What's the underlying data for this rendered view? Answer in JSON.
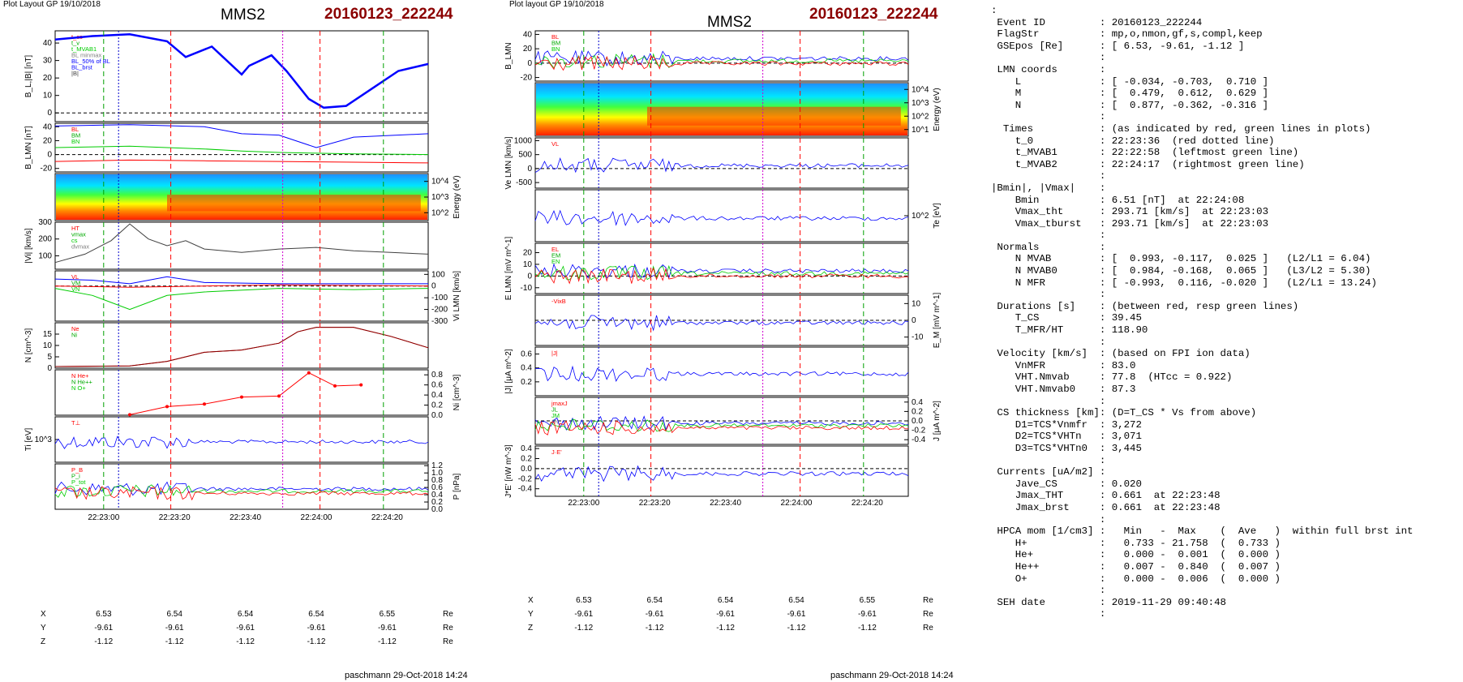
{
  "header": {
    "left_caption": "Plot Layout GP 19/10/2018",
    "middle_caption": "Plot layout GP 19/10/2018",
    "spacecraft": "MMS2",
    "event_id": "20160123_222244"
  },
  "footer": {
    "left": "paschmann 29-Oct-2018 14:24",
    "middle": "paschmann 29-Oct-2018 14:24"
  },
  "time_axis": {
    "left_ticks": [
      "22:23:00",
      "22:23:20",
      "22:23:40",
      "22:24:00",
      "22:24:20"
    ],
    "middle_ticks": [
      "22:23:00",
      "22:23:20",
      "22:23:40",
      "22:24:00",
      "22:24:20"
    ]
  },
  "orbit_left": {
    "rows": [
      {
        "label": "X",
        "values": [
          "6.53",
          "6.54",
          "6.54",
          "6.54",
          "6.55"
        ],
        "unit": "Re"
      },
      {
        "label": "Y",
        "values": [
          "-9.61",
          "-9.61",
          "-9.61",
          "-9.61",
          "-9.61"
        ],
        "unit": "Re"
      },
      {
        "label": "Z",
        "values": [
          "-1.12",
          "-1.12",
          "-1.12",
          "-1.12",
          "-1.12"
        ],
        "unit": "Re"
      }
    ]
  },
  "orbit_middle": {
    "rows": [
      {
        "label": "X",
        "values": [
          "6.53",
          "6.54",
          "6.54",
          "6.54",
          "6.55"
        ],
        "unit": "Re"
      },
      {
        "label": "Y",
        "values": [
          "-9.61",
          "-9.61",
          "-9.61",
          "-9.61",
          "-9.61"
        ],
        "unit": "Re"
      },
      {
        "label": "Z",
        "values": [
          "-1.12",
          "-1.12",
          "-1.12",
          "-1.12",
          "-1.12"
        ],
        "unit": "Re"
      }
    ]
  },
  "colors": {
    "red_marker": "#ff0000",
    "green_marker": "#00a000",
    "magenta_marker": "#d000d0",
    "blue_marker": "#0000cc",
    "event_color": "#8b0000",
    "bl_series": "#0000ff",
    "bm_series": "#00cc00",
    "bn_series": "#ff0000"
  },
  "chart_data": [
    {
      "type": "line",
      "panel": "left-1",
      "ylabel": "B_L,|B| [nT]",
      "yticks": [
        "40",
        "30",
        "20",
        "10",
        "0"
      ],
      "ylim": [
        -5,
        47
      ],
      "legend": [
        "t_cs",
        "t_v",
        "t_MVAB1",
        "BL minmax",
        "BL_50% of BL",
        "BL_brst",
        "|B|"
      ],
      "series": [
        {
          "name": "BL",
          "x": [
            0,
            0.1,
            0.2,
            0.3,
            0.35,
            0.42,
            0.5,
            0.52,
            0.58,
            0.62,
            0.68,
            0.72,
            0.78,
            0.85,
            0.92,
            1.0
          ],
          "values": [
            42,
            44,
            45,
            41,
            32,
            38,
            22,
            27,
            33,
            24,
            8,
            3,
            4,
            14,
            24,
            28
          ]
        }
      ]
    },
    {
      "type": "line",
      "panel": "left-2",
      "ylabel": "B_LMN [nT]",
      "yticks": [
        "40",
        "20",
        "0",
        "-20"
      ],
      "ylim": [
        -25,
        45
      ],
      "legend": [
        "BL",
        "BM",
        "BN"
      ],
      "series": [
        {
          "name": "BL",
          "x": [
            0,
            0.2,
            0.4,
            0.5,
            0.6,
            0.7,
            0.8,
            1.0
          ],
          "values": [
            41,
            43,
            40,
            30,
            28,
            10,
            25,
            30
          ]
        },
        {
          "name": "BM",
          "x": [
            0,
            0.2,
            0.4,
            0.5,
            0.6,
            0.7,
            0.8,
            1.0
          ],
          "values": [
            10,
            12,
            8,
            5,
            3,
            2,
            1,
            0
          ]
        },
        {
          "name": "BN",
          "x": [
            0,
            0.2,
            0.4,
            0.6,
            0.8,
            1.0
          ],
          "values": [
            -10,
            -8,
            -9,
            -10,
            -11,
            -12
          ]
        }
      ]
    },
    {
      "type": "heatmap",
      "panel": "left-3",
      "ylabel": "Energy (eV)",
      "yticks": [
        "10^4",
        "10^3",
        "10^2"
      ]
    },
    {
      "type": "line",
      "panel": "left-4",
      "ylabel": "|Vi| [km/s]",
      "yticks": [
        "300",
        "200",
        "100"
      ],
      "ylim": [
        20,
        300
      ],
      "legend": [
        "HT",
        "vmax",
        "cs",
        "dvmax"
      ],
      "series": [
        {
          "name": "|Vi|",
          "x": [
            0,
            0.08,
            0.15,
            0.2,
            0.25,
            0.3,
            0.35,
            0.4,
            0.5,
            0.6,
            0.7,
            0.8,
            0.9,
            1.0
          ],
          "values": [
            60,
            110,
            190,
            290,
            200,
            160,
            190,
            140,
            120,
            140,
            150,
            130,
            120,
            110
          ]
        }
      ]
    },
    {
      "type": "line",
      "panel": "left-5",
      "ylabel": "Vi LMN [km/s]",
      "yticks": [
        "100",
        "0",
        "-100",
        "-200",
        "-300"
      ],
      "ylim": [
        -300,
        130
      ],
      "legend": [
        "VL",
        "VM",
        "VN"
      ],
      "series": [
        {
          "name": "VL",
          "x": [
            0,
            0.1,
            0.2,
            0.3,
            0.4,
            0.6,
            0.8,
            1.0
          ],
          "values": [
            60,
            50,
            20,
            80,
            30,
            20,
            20,
            20
          ]
        },
        {
          "name": "VM",
          "x": [
            0,
            0.1,
            0.2,
            0.3,
            0.4,
            0.6,
            0.8,
            1.0
          ],
          "values": [
            -20,
            -80,
            -200,
            -80,
            -50,
            -20,
            -30,
            -20
          ]
        },
        {
          "name": "VN",
          "x": [
            0,
            0.2,
            0.4,
            0.6,
            0.8,
            1.0
          ],
          "values": [
            0,
            -10,
            0,
            10,
            5,
            0
          ]
        }
      ]
    },
    {
      "type": "line",
      "panel": "left-6",
      "ylabel": "N [cm^-3]",
      "yticks": [
        "15",
        "10",
        "5",
        "0"
      ],
      "ylim": [
        0,
        20
      ],
      "legend": [
        "Ne",
        "Ni"
      ],
      "series": [
        {
          "name": "Ne",
          "x": [
            0,
            0.2,
            0.3,
            0.4,
            0.5,
            0.6,
            0.65,
            0.7,
            0.8,
            0.9,
            1.0
          ],
          "values": [
            0.7,
            1,
            3,
            7,
            8,
            11,
            16,
            18,
            18,
            14,
            9
          ]
        },
        {
          "name": "Ni",
          "x": [
            0,
            0.2,
            0.3,
            0.4,
            0.5,
            0.6,
            0.65,
            0.7,
            0.8,
            0.9,
            1.0
          ],
          "values": [
            0.7,
            1,
            3,
            7,
            8,
            11,
            16,
            18,
            18,
            14,
            9
          ]
        }
      ]
    },
    {
      "type": "line",
      "panel": "left-7",
      "ylabel": "Ni [cm^-3]",
      "yticks": [
        "0.8",
        "0.6",
        "0.4",
        "0.2",
        "0.0"
      ],
      "ylim": [
        0,
        0.9
      ],
      "legend": [
        "N He+",
        "N He++",
        "N O+"
      ],
      "series": [
        {
          "name": "N He++",
          "x": [
            0.2,
            0.3,
            0.4,
            0.5,
            0.6,
            0.68,
            0.75,
            0.82
          ],
          "values": [
            0.01,
            0.17,
            0.22,
            0.36,
            0.38,
            0.84,
            0.58,
            0.6
          ]
        }
      ]
    },
    {
      "type": "line",
      "panel": "left-8",
      "ylabel": "Ti [eV]",
      "yticks": [
        "10^3"
      ],
      "legend": [
        "T⊥"
      ]
    },
    {
      "type": "line",
      "panel": "left-9",
      "ylabel": "P [nPa]",
      "yticks": [
        "1.2",
        "1.0",
        "0.8",
        "0.6",
        "0.4",
        "0.2",
        "0.0"
      ],
      "ylim": [
        0,
        1.25
      ],
      "legend": [
        "P_B",
        "P_i",
        "P_tot"
      ]
    },
    {
      "type": "line",
      "panel": "mid-1",
      "ylabel": "B_LMN",
      "yticks": [
        "40",
        "20",
        "0",
        "-20"
      ],
      "ylim": [
        -25,
        45
      ],
      "legend": [
        "BL",
        "BM",
        "BN"
      ]
    },
    {
      "type": "heatmap",
      "panel": "mid-2",
      "ylabel": "Energy (eV)",
      "yticks": [
        "10^4",
        "10^3",
        "10^2",
        "10^1"
      ]
    },
    {
      "type": "line",
      "panel": "mid-3",
      "ylabel": "Ve LMN [km/s]",
      "yticks": [
        "1000",
        "500",
        "0",
        "-500"
      ],
      "ylim": [
        -700,
        1100
      ],
      "legend": [
        "VL"
      ]
    },
    {
      "type": "line",
      "panel": "mid-4",
      "ylabel": "Te [eV]",
      "yticks": [
        "10^2"
      ]
    },
    {
      "type": "line",
      "panel": "mid-5",
      "ylabel": "E LMN [mV m^-1]",
      "yticks": [
        "20",
        "10",
        "0",
        "-10"
      ],
      "ylim": [
        -15,
        28
      ],
      "legend": [
        "EL",
        "EM",
        "EN"
      ]
    },
    {
      "type": "line",
      "panel": "mid-6",
      "ylabel": "E_M [mV m^-1]",
      "yticks": [
        "10",
        "0",
        "-10"
      ],
      "ylim": [
        -15,
        15
      ],
      "legend": [
        "-VixB"
      ]
    },
    {
      "type": "line",
      "panel": "mid-7",
      "ylabel": "|J| [μA m^-2]",
      "yticks": [
        "0.6",
        "0.4",
        "0.2"
      ],
      "ylim": [
        0,
        0.7
      ],
      "legend": [
        "|J|"
      ]
    },
    {
      "type": "line",
      "panel": "mid-8",
      "ylabel": "J [μA m^-2]",
      "yticks": [
        "0.4",
        "0.2",
        "0.0",
        "-0.2",
        "-0.4"
      ],
      "ylim": [
        -0.5,
        0.5
      ],
      "legend": [
        "jmaxJ",
        "JL",
        "JM",
        "JN"
      ]
    },
    {
      "type": "line",
      "panel": "mid-9",
      "ylabel": "J*E' [nW m^-3]",
      "yticks": [
        "0.4",
        "0.2",
        "0.0",
        "-0.2",
        "-0.4"
      ],
      "ylim": [
        -0.55,
        0.45
      ],
      "legend": [
        "J·E'"
      ]
    }
  ],
  "summary": {
    "lines": [
      ":",
      " Event ID         : 20160123_222244",
      " FlagStr          : mp,o,nmon,gf,s,compl,keep",
      " GSEpos [Re]      : [ 6.53, -9.61, -1.12 ]",
      "                  :",
      " LMN coords       :",
      "    L             : [ -0.034, -0.703,  0.710 ]",
      "    M             : [  0.479,  0.612,  0.629 ]",
      "    N             : [  0.877, -0.362, -0.316 ]",
      "                  :",
      "  Times           : (as indicated by red, green lines in plots)",
      "    t_0           : 22:23:36  (red dotted line)",
      "    t_MVAB1       : 22:22:58  (leftmost green line)",
      "    t_MVAB2       : 22:24:17  (rightmost green line)",
      "                  :",
      "|Bmin|, |Vmax|    :",
      "    Bmin          : 6.51 [nT]  at 22:24:08",
      "    Vmax_tht      : 293.71 [km/s]  at 22:23:03",
      "    Vmax_tburst   : 293.71 [km/s]  at 22:23:03",
      "                  :",
      " Normals          :",
      "    N MVAB        : [  0.993, -0.117,  0.025 ]   (L2/L1 = 6.04)",
      "    N MVAB0       : [  0.984, -0.168,  0.065 ]   (L3/L2 = 5.30)",
      "    N MFR         : [ -0.993,  0.116, -0.020 ]   (L2/L1 = 13.24)",
      "                  :",
      " Durations [s]    : (between red, resp green lines)",
      "    T_CS          : 39.45",
      "    T_MFR/HT      : 118.90",
      "                  :",
      " Velocity [km/s]  : (based on FPI ion data)",
      "    VnMFR         : 83.0",
      "    VHT.Nmvab     : 77.8  (HTcc = 0.922)",
      "    VHT.Nmvab0    : 87.3",
      "                  :",
      " CS thickness [km]: (D=T_CS * Vs from above)",
      "    D1=TCS*Vnmfr  : 3,272",
      "    D2=TCS*VHTn   : 3,071",
      "    D3=TCS*VHTn0  : 3,445",
      "                  :",
      " Currents [uA/m2] :",
      "    Jave_CS       : 0.020",
      "    Jmax_THT      : 0.661  at 22:23:48",
      "    Jmax_brst     : 0.661  at 22:23:48",
      "                  :",
      " HPCA mom [1/cm3] :   Min   -  Max    (  Ave   )  within full brst int",
      "    H+            :   0.733 - 21.758  (  0.733 )",
      "    He+           :   0.000 -  0.001  (  0.000 )",
      "    He++          :   0.007 -  0.840  (  0.007 )",
      "    O+            :   0.000 -  0.006  (  0.000 )",
      "                  :",
      " SEH date         : 2019-11-29 09:40:48",
      "                  :"
    ]
  }
}
